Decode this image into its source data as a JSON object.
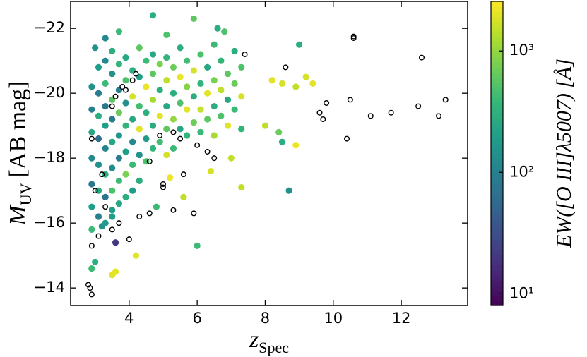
{
  "chart_data": {
    "type": "scatter",
    "x_label": {
      "main": "z",
      "sub": "Spec"
    },
    "y_label": {
      "main": "M",
      "sub": "UV",
      "unit": "[AB mag]"
    },
    "colorbar_label": "EW([O III]λ5007) [Å]",
    "colormap": "viridis",
    "clog": true,
    "clim": [
      8,
      2560
    ],
    "cticks": [
      {
        "value": 10,
        "label": "10¹"
      },
      {
        "value": 100,
        "label": "10²"
      },
      {
        "value": 1000,
        "label": "10³"
      }
    ],
    "xlim": [
      2.28,
      13.95
    ],
    "xticks": [
      4,
      6,
      8,
      10,
      12
    ],
    "ylim": [
      -13.46,
      -22.83
    ],
    "yticks": [
      {
        "value": -22,
        "label": "−22"
      },
      {
        "value": -20,
        "label": "−20"
      },
      {
        "value": -18,
        "label": "−18"
      },
      {
        "value": -16,
        "label": "−16"
      },
      {
        "value": -14,
        "label": "−14"
      }
    ],
    "open_points": {
      "x": [
        10.6,
        10.6,
        12.6,
        8.6,
        7.4,
        9.6,
        9.7,
        9.8,
        10.5,
        11.1,
        11.7,
        12.5,
        13.1,
        13.3,
        10.4,
        2.8,
        2.85,
        2.9,
        2.9,
        3.1,
        3.5,
        4.0,
        3.7,
        4.3,
        4.6,
        5.3,
        5.9,
        5.0,
        5.0,
        5.6,
        6.3,
        6.5,
        6.0,
        5.3,
        4.9,
        3.9,
        3.8,
        4.1,
        4.2,
        3.6,
        2.9,
        3.0,
        3.2,
        3.3,
        4.6,
        5.5,
        3.5
      ],
      "y": [
        -21.7,
        -21.75,
        -21.1,
        -20.8,
        -21.2,
        -19.4,
        -19.2,
        -19.7,
        -19.8,
        -19.3,
        -19.4,
        -19.6,
        -19.3,
        -19.8,
        -18.6,
        -14.1,
        -14.0,
        -13.8,
        -15.3,
        -15.6,
        -15.8,
        -15.5,
        -16.0,
        -16.2,
        -16.3,
        -16.4,
        -16.3,
        -17.2,
        -17.1,
        -17.5,
        -18.2,
        -18.0,
        -18.4,
        -18.8,
        -18.7,
        -20.1,
        -20.2,
        -20.4,
        -20.6,
        -19.9,
        -18.6,
        -17.0,
        -17.5,
        -16.5,
        -17.9,
        -18.6,
        -19.6
      ]
    },
    "points": [
      {
        "x": 4.7,
        "y": -22.4,
        "c": 300
      },
      {
        "x": 5.9,
        "y": -22.3,
        "c": 600
      },
      {
        "x": 3.7,
        "y": -21.9,
        "c": 400
      },
      {
        "x": 6.6,
        "y": -22.0,
        "c": 300
      },
      {
        "x": 6.8,
        "y": -21.9,
        "c": 500
      },
      {
        "x": 5.1,
        "y": -21.8,
        "c": 500
      },
      {
        "x": 3.0,
        "y": -21.4,
        "c": 150
      },
      {
        "x": 3.3,
        "y": -21.7,
        "c": 120
      },
      {
        "x": 9.0,
        "y": -21.5,
        "c": 300
      },
      {
        "x": 7.3,
        "y": -17.1,
        "c": 1500
      },
      {
        "x": 8.7,
        "y": -17.0,
        "c": 150
      },
      {
        "x": 6.0,
        "y": -15.3,
        "c": 400
      },
      {
        "x": 3.6,
        "y": -15.4,
        "c": 20
      },
      {
        "x": 2.9,
        "y": -14.6,
        "c": 400
      },
      {
        "x": 3.0,
        "y": -14.8,
        "c": 300
      },
      {
        "x": 3.5,
        "y": -14.4,
        "c": 2000
      },
      {
        "x": 3.6,
        "y": -14.5,
        "c": 2000
      },
      {
        "x": 4.2,
        "y": -15.0,
        "c": 2000
      },
      {
        "x": 8.2,
        "y": -20.4,
        "c": 2000
      },
      {
        "x": 8.5,
        "y": -20.3,
        "c": 1800
      },
      {
        "x": 8.9,
        "y": -20.2,
        "c": 1500
      },
      {
        "x": 9.2,
        "y": -20.5,
        "c": 1800
      },
      {
        "x": 9.4,
        "y": -20.3,
        "c": 2000
      },
      {
        "x": 8.0,
        "y": -19.0,
        "c": 1500
      },
      {
        "x": 8.4,
        "y": -18.8,
        "c": 700
      },
      {
        "x": 8.9,
        "y": -18.4,
        "c": 2200
      },
      {
        "x": 8.5,
        "y": -18.5,
        "c": 300
      },
      {
        "x": 7.0,
        "y": -18.0,
        "c": 1500
      },
      {
        "x": 6.4,
        "y": -17.6,
        "c": 1800
      },
      {
        "x": 5.2,
        "y": -17.4,
        "c": 2200
      },
      {
        "x": 3.5,
        "y": -16.2,
        "c": 200
      },
      {
        "x": 3.2,
        "y": -15.9,
        "c": 150
      },
      {
        "x": 4.8,
        "y": -16.5,
        "c": 400
      },
      {
        "x": 5.6,
        "y": -16.8,
        "c": 1500
      },
      {
        "x": 2.9,
        "y": -20.2,
        "c": 150
      },
      {
        "x": 2.9,
        "y": -19.5,
        "c": 100
      },
      {
        "x": 2.9,
        "y": -18.8,
        "c": 250
      },
      {
        "x": 2.9,
        "y": -18.0,
        "c": 120
      },
      {
        "x": 2.9,
        "y": -17.2,
        "c": 80
      },
      {
        "x": 2.9,
        "y": -16.5,
        "c": 200
      },
      {
        "x": 2.9,
        "y": -15.8,
        "c": 400
      },
      {
        "x": 3.1,
        "y": -20.8,
        "c": 200
      },
      {
        "x": 3.1,
        "y": -20.0,
        "c": 90
      },
      {
        "x": 3.1,
        "y": -19.3,
        "c": 300
      },
      {
        "x": 3.1,
        "y": -18.6,
        "c": 60
      },
      {
        "x": 3.1,
        "y": -17.8,
        "c": 150
      },
      {
        "x": 3.1,
        "y": -17.0,
        "c": 250
      },
      {
        "x": 3.1,
        "y": -16.2,
        "c": 100
      },
      {
        "x": 3.3,
        "y": -21.0,
        "c": 120
      },
      {
        "x": 3.3,
        "y": -20.3,
        "c": 400
      },
      {
        "x": 3.3,
        "y": -19.6,
        "c": 80
      },
      {
        "x": 3.3,
        "y": -19.0,
        "c": 200
      },
      {
        "x": 3.3,
        "y": -18.3,
        "c": 110
      },
      {
        "x": 3.3,
        "y": -17.5,
        "c": 300
      },
      {
        "x": 3.3,
        "y": -16.8,
        "c": 70
      },
      {
        "x": 3.3,
        "y": -16.0,
        "c": 180
      },
      {
        "x": 3.5,
        "y": -21.3,
        "c": 300
      },
      {
        "x": 3.5,
        "y": -20.6,
        "c": 150
      },
      {
        "x": 3.5,
        "y": -19.8,
        "c": 600
      },
      {
        "x": 3.5,
        "y": -19.2,
        "c": 90
      },
      {
        "x": 3.5,
        "y": -18.5,
        "c": 250
      },
      {
        "x": 3.5,
        "y": -17.7,
        "c": 130
      },
      {
        "x": 3.5,
        "y": -17.0,
        "c": 500
      },
      {
        "x": 3.5,
        "y": -16.4,
        "c": 200
      },
      {
        "x": 3.7,
        "y": -20.9,
        "c": 350
      },
      {
        "x": 3.7,
        "y": -20.1,
        "c": 100
      },
      {
        "x": 3.7,
        "y": -19.4,
        "c": 700
      },
      {
        "x": 3.7,
        "y": -18.7,
        "c": 160
      },
      {
        "x": 3.7,
        "y": -18.0,
        "c": 90
      },
      {
        "x": 3.7,
        "y": -17.3,
        "c": 400
      },
      {
        "x": 3.7,
        "y": -16.6,
        "c": 250
      },
      {
        "x": 3.9,
        "y": -21.1,
        "c": 250
      },
      {
        "x": 3.9,
        "y": -20.4,
        "c": 500
      },
      {
        "x": 3.9,
        "y": -19.7,
        "c": 140
      },
      {
        "x": 3.9,
        "y": -19.0,
        "c": 350
      },
      {
        "x": 3.9,
        "y": -18.2,
        "c": 200
      },
      {
        "x": 3.9,
        "y": -17.5,
        "c": 800
      },
      {
        "x": 3.9,
        "y": -16.8,
        "c": 300
      },
      {
        "x": 4.1,
        "y": -20.7,
        "c": 300
      },
      {
        "x": 4.1,
        "y": -19.9,
        "c": 1800
      },
      {
        "x": 4.1,
        "y": -19.2,
        "c": 250
      },
      {
        "x": 4.1,
        "y": -18.5,
        "c": 120
      },
      {
        "x": 4.1,
        "y": -17.8,
        "c": 400
      },
      {
        "x": 4.1,
        "y": -17.0,
        "c": 200
      },
      {
        "x": 4.3,
        "y": -21.4,
        "c": 600
      },
      {
        "x": 4.3,
        "y": -20.5,
        "c": 200
      },
      {
        "x": 4.3,
        "y": -19.6,
        "c": 450
      },
      {
        "x": 4.3,
        "y": -18.9,
        "c": 2000
      },
      {
        "x": 4.3,
        "y": -18.1,
        "c": 150
      },
      {
        "x": 4.3,
        "y": -17.3,
        "c": 300
      },
      {
        "x": 4.5,
        "y": -21.0,
        "c": 400
      },
      {
        "x": 4.5,
        "y": -20.2,
        "c": 2200
      },
      {
        "x": 4.5,
        "y": -19.4,
        "c": 300
      },
      {
        "x": 4.5,
        "y": -18.6,
        "c": 180
      },
      {
        "x": 4.5,
        "y": -17.9,
        "c": 500
      },
      {
        "x": 4.7,
        "y": -21.2,
        "c": 250
      },
      {
        "x": 4.7,
        "y": -20.6,
        "c": 600
      },
      {
        "x": 4.7,
        "y": -19.8,
        "c": 1200
      },
      {
        "x": 4.7,
        "y": -19.0,
        "c": 280
      },
      {
        "x": 4.7,
        "y": -18.3,
        "c": 350
      },
      {
        "x": 4.9,
        "y": -20.9,
        "c": 800
      },
      {
        "x": 4.9,
        "y": -20.1,
        "c": 300
      },
      {
        "x": 4.9,
        "y": -19.3,
        "c": 2000
      },
      {
        "x": 4.9,
        "y": -18.5,
        "c": 450
      },
      {
        "x": 5.1,
        "y": -21.1,
        "c": 350
      },
      {
        "x": 5.1,
        "y": -20.4,
        "c": 1500
      },
      {
        "x": 5.1,
        "y": -19.6,
        "c": 250
      },
      {
        "x": 5.1,
        "y": -18.9,
        "c": 600
      },
      {
        "x": 5.1,
        "y": -18.1,
        "c": 1800
      },
      {
        "x": 5.3,
        "y": -20.8,
        "c": 700
      },
      {
        "x": 5.3,
        "y": -20.0,
        "c": 300
      },
      {
        "x": 5.3,
        "y": -19.2,
        "c": 1000
      },
      {
        "x": 5.3,
        "y": -18.3,
        "c": 400
      },
      {
        "x": 5.5,
        "y": -21.4,
        "c": 300
      },
      {
        "x": 5.5,
        "y": -20.5,
        "c": 2200
      },
      {
        "x": 5.5,
        "y": -19.7,
        "c": 500
      },
      {
        "x": 5.5,
        "y": -18.9,
        "c": 250
      },
      {
        "x": 5.7,
        "y": -21.0,
        "c": 450
      },
      {
        "x": 5.7,
        "y": -20.2,
        "c": 900
      },
      {
        "x": 5.7,
        "y": -19.5,
        "c": 2000
      },
      {
        "x": 5.7,
        "y": -18.7,
        "c": 350
      },
      {
        "x": 5.9,
        "y": -20.7,
        "c": 1800
      },
      {
        "x": 5.9,
        "y": -19.9,
        "c": 300
      },
      {
        "x": 5.9,
        "y": -19.1,
        "c": 700
      },
      {
        "x": 6.1,
        "y": -21.2,
        "c": 500
      },
      {
        "x": 6.1,
        "y": -20.3,
        "c": 350
      },
      {
        "x": 6.1,
        "y": -19.5,
        "c": 1600
      },
      {
        "x": 6.1,
        "y": -18.8,
        "c": 400
      },
      {
        "x": 6.3,
        "y": -20.8,
        "c": 250
      },
      {
        "x": 6.3,
        "y": -20.0,
        "c": 2000
      },
      {
        "x": 6.3,
        "y": -19.2,
        "c": 600
      },
      {
        "x": 6.5,
        "y": -21.5,
        "c": 400
      },
      {
        "x": 6.5,
        "y": -20.4,
        "c": 800
      },
      {
        "x": 6.5,
        "y": -19.6,
        "c": 300
      },
      {
        "x": 6.5,
        "y": -18.7,
        "c": 1200
      },
      {
        "x": 6.7,
        "y": -21.0,
        "c": 350
      },
      {
        "x": 6.7,
        "y": -20.1,
        "c": 1500
      },
      {
        "x": 6.7,
        "y": -19.3,
        "c": 500
      },
      {
        "x": 6.9,
        "y": -20.6,
        "c": 600
      },
      {
        "x": 6.9,
        "y": -19.8,
        "c": 250
      },
      {
        "x": 6.9,
        "y": -19.0,
        "c": 2000
      },
      {
        "x": 7.1,
        "y": -21.3,
        "c": 300
      },
      {
        "x": 7.1,
        "y": -20.3,
        "c": 700
      },
      {
        "x": 7.1,
        "y": -19.5,
        "c": 400
      },
      {
        "x": 7.3,
        "y": -20.8,
        "c": 500
      },
      {
        "x": 7.3,
        "y": -19.9,
        "c": 1800
      },
      {
        "x": 7.3,
        "y": -18.9,
        "c": 350
      }
    ]
  }
}
